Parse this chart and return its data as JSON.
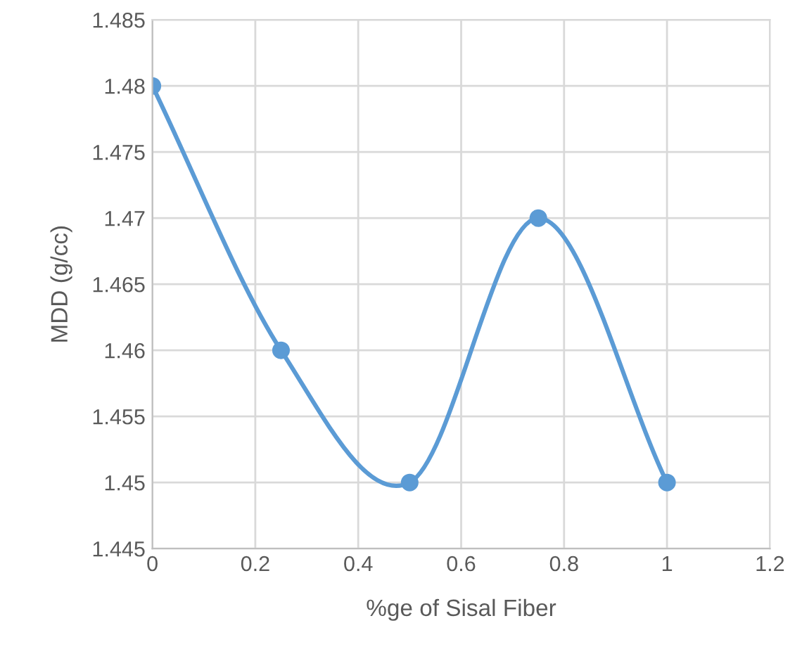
{
  "chart_data": {
    "type": "line",
    "xlabel": "%ge of Sisal Fiber",
    "ylabel": "MDD (g/cc)",
    "x": [
      0,
      0.25,
      0.5,
      0.75,
      1
    ],
    "series": [
      {
        "color": "#5b9bd5",
        "values": [
          1.48,
          1.46,
          1.45,
          1.47,
          1.45
        ]
      }
    ],
    "xlim": [
      0,
      1.2
    ],
    "xticks": [
      0,
      0.2,
      0.4,
      0.6,
      0.8,
      1,
      1.2
    ],
    "ylim": [
      1.445,
      1.485
    ],
    "yticks": [
      1.445,
      1.45,
      1.455,
      1.46,
      1.465,
      1.47,
      1.475,
      1.48,
      1.485
    ],
    "grid": true,
    "marker": "circle",
    "line_style": "solid",
    "legend": false
  }
}
